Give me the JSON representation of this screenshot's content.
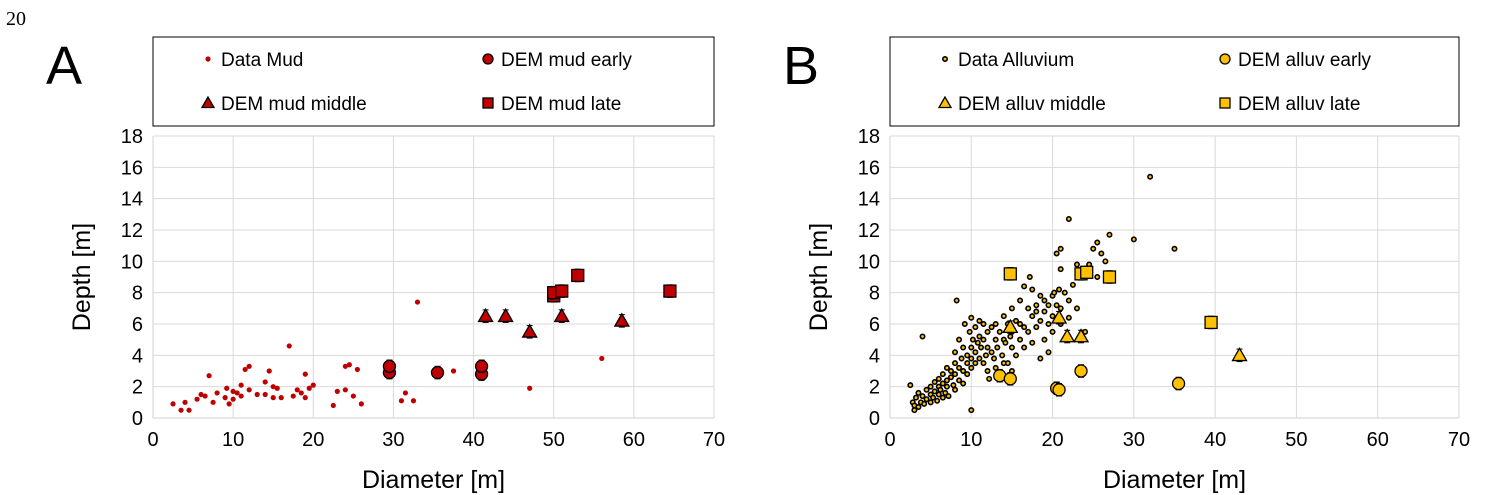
{
  "page_number": "20",
  "chart_data": [
    {
      "type": "scatter",
      "panel_label": "A",
      "xlabel": "Diameter [m]",
      "ylabel": "Depth [m]",
      "xlim": [
        0,
        70
      ],
      "ylim": [
        0,
        18
      ],
      "xticks": [
        0,
        10,
        20,
        30,
        40,
        50,
        60,
        70
      ],
      "yticks": [
        0,
        2,
        4,
        6,
        8,
        10,
        12,
        14,
        16,
        18
      ],
      "grid": true,
      "legend_position": "top",
      "series": [
        {
          "name": "Data Mud",
          "marker": "dot",
          "color": "#c00000",
          "points": [
            [
              2.5,
              0.9
            ],
            [
              3.5,
              0.5
            ],
            [
              4,
              1.0
            ],
            [
              4.5,
              0.5
            ],
            [
              5.5,
              1.2
            ],
            [
              6,
              1.5
            ],
            [
              6.5,
              1.4
            ],
            [
              7,
              2.7
            ],
            [
              7.5,
              1.0
            ],
            [
              8,
              1.6
            ],
            [
              9,
              1.3
            ],
            [
              9.2,
              1.9
            ],
            [
              9.5,
              0.9
            ],
            [
              10,
              1.2
            ],
            [
              10,
              1.7
            ],
            [
              10.5,
              1.6
            ],
            [
              11,
              2.1
            ],
            [
              11,
              1.4
            ],
            [
              11.5,
              3.1
            ],
            [
              12,
              1.8
            ],
            [
              12,
              3.3
            ],
            [
              13,
              1.5
            ],
            [
              14,
              2.3
            ],
            [
              14,
              1.5
            ],
            [
              14.5,
              3.0
            ],
            [
              15,
              2.0
            ],
            [
              15,
              1.3
            ],
            [
              15.5,
              1.9
            ],
            [
              16,
              1.3
            ],
            [
              17,
              4.6
            ],
            [
              17.5,
              1.4
            ],
            [
              18,
              1.8
            ],
            [
              18.5,
              1.6
            ],
            [
              19,
              2.8
            ],
            [
              19,
              1.3
            ],
            [
              19.5,
              1.9
            ],
            [
              20,
              2.1
            ],
            [
              22.5,
              0.8
            ],
            [
              23,
              1.7
            ],
            [
              24,
              1.8
            ],
            [
              24,
              3.3
            ],
            [
              24.5,
              3.4
            ],
            [
              25,
              1.4
            ],
            [
              25.5,
              3.1
            ],
            [
              26,
              0.9
            ],
            [
              29.5,
              3.1
            ],
            [
              31,
              1.1
            ],
            [
              31.5,
              1.6
            ],
            [
              32.5,
              1.1
            ],
            [
              33,
              7.4
            ],
            [
              37.5,
              3.0
            ],
            [
              47,
              1.9
            ],
            [
              56,
              3.8
            ]
          ]
        },
        {
          "name": "DEM mud early",
          "marker": "circle",
          "color": "#c00000",
          "points": [
            [
              29.5,
              2.9
            ],
            [
              29.5,
              3.3
            ],
            [
              35.5,
              2.9
            ],
            [
              41,
              2.8
            ],
            [
              41,
              3.3
            ]
          ]
        },
        {
          "name": "DEM mud middle",
          "marker": "triangle",
          "color": "#c00000",
          "points": [
            [
              41.5,
              6.5
            ],
            [
              44,
              6.5
            ],
            [
              47,
              5.5
            ],
            [
              51,
              6.5
            ],
            [
              58.5,
              6.2
            ]
          ]
        },
        {
          "name": "DEM mud late",
          "marker": "square",
          "color": "#c00000",
          "points": [
            [
              50,
              7.8
            ],
            [
              50,
              8.0
            ],
            [
              51,
              8.1
            ],
            [
              53,
              9.1
            ],
            [
              64.5,
              8.1
            ]
          ]
        }
      ]
    },
    {
      "type": "scatter",
      "panel_label": "B",
      "xlabel": "Diameter [m]",
      "ylabel": "Depth [m]",
      "xlim": [
        0,
        70
      ],
      "ylim": [
        0,
        18
      ],
      "xticks": [
        0,
        10,
        20,
        30,
        40,
        50,
        60,
        70
      ],
      "yticks": [
        0,
        2,
        4,
        6,
        8,
        10,
        12,
        14,
        16,
        18
      ],
      "grid": true,
      "legend_position": "top",
      "series": [
        {
          "name": "Data Alluvium",
          "marker": "dot",
          "color": "#ffc000",
          "points": [
            [
              2.5,
              2.1
            ],
            [
              2.8,
              1.0
            ],
            [
              3,
              0.5
            ],
            [
              3,
              0.8
            ],
            [
              3.2,
              1.3
            ],
            [
              3.5,
              0.7
            ],
            [
              3.5,
              1.6
            ],
            [
              3.8,
              1.0
            ],
            [
              4,
              1.4
            ],
            [
              4,
              5.2
            ],
            [
              4.2,
              0.9
            ],
            [
              4.5,
              1.2
            ],
            [
              4.5,
              1.8
            ],
            [
              5,
              1.0
            ],
            [
              5,
              1.5
            ],
            [
              5,
              2.0
            ],
            [
              5.3,
              1.3
            ],
            [
              5.5,
              1.7
            ],
            [
              5.5,
              2.3
            ],
            [
              5.8,
              1.1
            ],
            [
              6,
              1.5
            ],
            [
              6,
              2.0
            ],
            [
              6,
              2.5
            ],
            [
              6.2,
              1.8
            ],
            [
              6.5,
              1.3
            ],
            [
              6.5,
              2.2
            ],
            [
              6.5,
              2.8
            ],
            [
              6.8,
              1.6
            ],
            [
              7,
              2.0
            ],
            [
              7,
              2.4
            ],
            [
              7,
              3.2
            ],
            [
              7.2,
              1.4
            ],
            [
              7.5,
              2.6
            ],
            [
              7.5,
              3.0
            ],
            [
              7.8,
              2.1
            ],
            [
              8,
              1.8
            ],
            [
              8,
              2.8
            ],
            [
              8,
              3.5
            ],
            [
              8,
              4.2
            ],
            [
              8.2,
              7.5
            ],
            [
              8.5,
              2.4
            ],
            [
              8.5,
              3.2
            ],
            [
              8.5,
              5.0
            ],
            [
              8.8,
              3.8
            ],
            [
              9,
              2.2
            ],
            [
              9,
              3.0
            ],
            [
              9,
              4.5
            ],
            [
              9.2,
              6.0
            ],
            [
              9.5,
              2.8
            ],
            [
              9.5,
              3.5
            ],
            [
              9.5,
              4.0
            ],
            [
              9.8,
              5.5
            ],
            [
              10,
              0.5
            ],
            [
              10,
              3.2
            ],
            [
              10,
              3.8
            ],
            [
              10,
              4.5
            ],
            [
              10,
              6.4
            ],
            [
              10.2,
              5.0
            ],
            [
              10.5,
              3.5
            ],
            [
              10.5,
              4.2
            ],
            [
              10.5,
              5.8
            ],
            [
              10.8,
              4.8
            ],
            [
              11,
              3.8
            ],
            [
              11,
              5.2
            ],
            [
              11,
              6.2
            ],
            [
              11.2,
              4.5
            ],
            [
              11.5,
              3.5
            ],
            [
              11.5,
              5.0
            ],
            [
              11.5,
              6.0
            ],
            [
              11.8,
              4.0
            ],
            [
              12,
              3.0
            ],
            [
              12,
              4.5
            ],
            [
              12,
              5.5
            ],
            [
              12.2,
              2.5
            ],
            [
              12.5,
              4.2
            ],
            [
              12.5,
              5.8
            ],
            [
              12.8,
              3.8
            ],
            [
              13,
              3.2
            ],
            [
              13,
              5.0
            ],
            [
              13,
              6.0
            ],
            [
              13.2,
              4.5
            ],
            [
              13.5,
              2.8
            ],
            [
              13.5,
              5.5
            ],
            [
              13.8,
              4.0
            ],
            [
              14,
              3.5
            ],
            [
              14,
              5.0
            ],
            [
              14,
              6.5
            ],
            [
              14.2,
              4.8
            ],
            [
              14.5,
              3.5
            ],
            [
              14.5,
              6.0
            ],
            [
              14.8,
              5.2
            ],
            [
              15,
              3.0
            ],
            [
              15,
              4.5
            ],
            [
              15,
              5.5
            ],
            [
              15,
              7.0
            ],
            [
              15.5,
              4.0
            ],
            [
              15.5,
              6.2
            ],
            [
              16,
              5.0
            ],
            [
              16,
              6.0
            ],
            [
              16,
              7.5
            ],
            [
              16.5,
              4.5
            ],
            [
              16.5,
              5.8
            ],
            [
              16.5,
              8.4
            ],
            [
              17,
              5.5
            ],
            [
              17,
              7.0
            ],
            [
              17.2,
              9.0
            ],
            [
              17.5,
              4.8
            ],
            [
              17.5,
              6.5
            ],
            [
              17.5,
              8.2
            ],
            [
              18,
              5.8
            ],
            [
              18,
              7.2
            ],
            [
              18,
              6.8
            ],
            [
              18.5,
              3.8
            ],
            [
              18.5,
              6.2
            ],
            [
              18.5,
              7.8
            ],
            [
              19,
              6.8
            ],
            [
              19,
              7.5
            ],
            [
              19,
              5.0
            ],
            [
              19.5,
              4.2
            ],
            [
              19.5,
              6.0
            ],
            [
              19.5,
              7.2
            ],
            [
              20,
              5.5
            ],
            [
              20,
              6.5
            ],
            [
              20,
              7.8
            ],
            [
              20.2,
              8.0
            ],
            [
              20.5,
              7.2
            ],
            [
              20.5,
              10.5
            ],
            [
              20.8,
              8.2
            ],
            [
              21,
              6.0
            ],
            [
              21,
              7.0
            ],
            [
              21,
              9.5
            ],
            [
              21,
              10.8
            ],
            [
              21.5,
              8.0
            ],
            [
              22,
              6.4
            ],
            [
              22,
              7.5
            ],
            [
              22,
              12.7
            ],
            [
              22.5,
              8.5
            ],
            [
              23,
              7.0
            ],
            [
              23,
              9.8
            ],
            [
              24,
              5.5
            ],
            [
              24,
              9.2
            ],
            [
              24.5,
              9.8
            ],
            [
              25,
              10.8
            ],
            [
              25.5,
              9.0
            ],
            [
              25.5,
              11.2
            ],
            [
              26,
              10.5
            ],
            [
              26.5,
              10.0
            ],
            [
              27,
              11.7
            ],
            [
              30,
              11.4
            ],
            [
              32,
              15.4
            ],
            [
              35,
              10.8
            ]
          ]
        },
        {
          "name": "DEM alluv early",
          "marker": "circle",
          "color": "#ffc000",
          "points": [
            [
              13.5,
              2.7
            ],
            [
              14.8,
              2.5
            ],
            [
              20.5,
              1.9
            ],
            [
              20.8,
              1.8
            ],
            [
              23.5,
              3.0
            ],
            [
              35.5,
              2.2
            ]
          ]
        },
        {
          "name": "DEM alluv middle",
          "marker": "triangle",
          "color": "#ffc000",
          "points": [
            [
              14.8,
              5.8
            ],
            [
              20.8,
              6.4
            ],
            [
              21.8,
              5.2
            ],
            [
              23.5,
              5.2
            ],
            [
              43,
              4.0
            ]
          ]
        },
        {
          "name": "DEM alluv late",
          "marker": "square",
          "color": "#ffc000",
          "points": [
            [
              14.8,
              9.2
            ],
            [
              23.5,
              9.2
            ],
            [
              24.2,
              9.3
            ],
            [
              27,
              9.0
            ],
            [
              39.5,
              6.1
            ]
          ]
        }
      ]
    }
  ]
}
